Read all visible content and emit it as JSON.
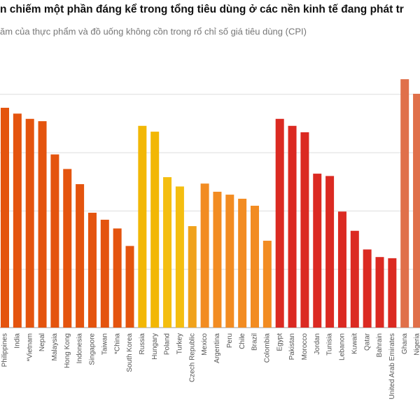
{
  "chart_data": {
    "type": "bar",
    "title": "n chiếm một phần đáng kể trong tổng tiêu dùng ở các nền kinh tế đang phát tr",
    "subtitle": "ăm của thực phẩm và đồ uống không cồn trong rổ chỉ số giá tiêu dùng (CPI)",
    "categories": [
      "Philippines",
      "India",
      "*Vietnam",
      "Nepal",
      "Malaysia",
      "Hong Kong",
      "Indonesia",
      "Singapore",
      "Taiwan",
      "*China",
      "South Korea",
      "Russia",
      "Hungary",
      "Poland",
      "Turkey",
      "Czech Republic",
      "Mexico",
      "Argentina",
      "Peru",
      "Chile",
      "Brazil",
      "Colombia",
      "Egypt",
      "Pakistan",
      "Morocco",
      "Jordan",
      "Tunisia",
      "Lebanon",
      "Kuwait",
      "Qatar",
      "Bahrain",
      "United Arab Emirates",
      "Ghana",
      "Nigeria"
    ],
    "values": [
      37.7,
      36.7,
      35.8,
      35.4,
      29.7,
      27.2,
      24.6,
      19.7,
      18.5,
      17.0,
      14.0,
      34.6,
      33.6,
      25.8,
      24.2,
      17.4,
      24.7,
      23.3,
      22.8,
      22.1,
      20.9,
      14.9,
      35.8,
      34.6,
      33.5,
      26.4,
      26.0,
      19.9,
      16.6,
      13.4,
      12.1,
      11.9,
      42.6,
      40.1
    ],
    "colors": [
      "#e4540e",
      "#e4540e",
      "#e4540e",
      "#e4540e",
      "#e4540e",
      "#e4540e",
      "#e4540e",
      "#e4540e",
      "#e4540e",
      "#e4540e",
      "#e4540e",
      "#f2b705",
      "#f2b705",
      "#f4be10",
      "#f4be10",
      "#f0a21c",
      "#f28c22",
      "#f28c22",
      "#f28c22",
      "#f28c22",
      "#f28c22",
      "#f28c22",
      "#db2a22",
      "#db2a22",
      "#db2a22",
      "#db2a22",
      "#db2a22",
      "#db2a22",
      "#db2a22",
      "#db2a22",
      "#db2a22",
      "#db2a22",
      "#e0704a",
      "#e0704a"
    ],
    "ylim": [
      0,
      50
    ],
    "yticks": [
      0,
      10,
      20,
      30,
      40
    ],
    "grid": true
  }
}
